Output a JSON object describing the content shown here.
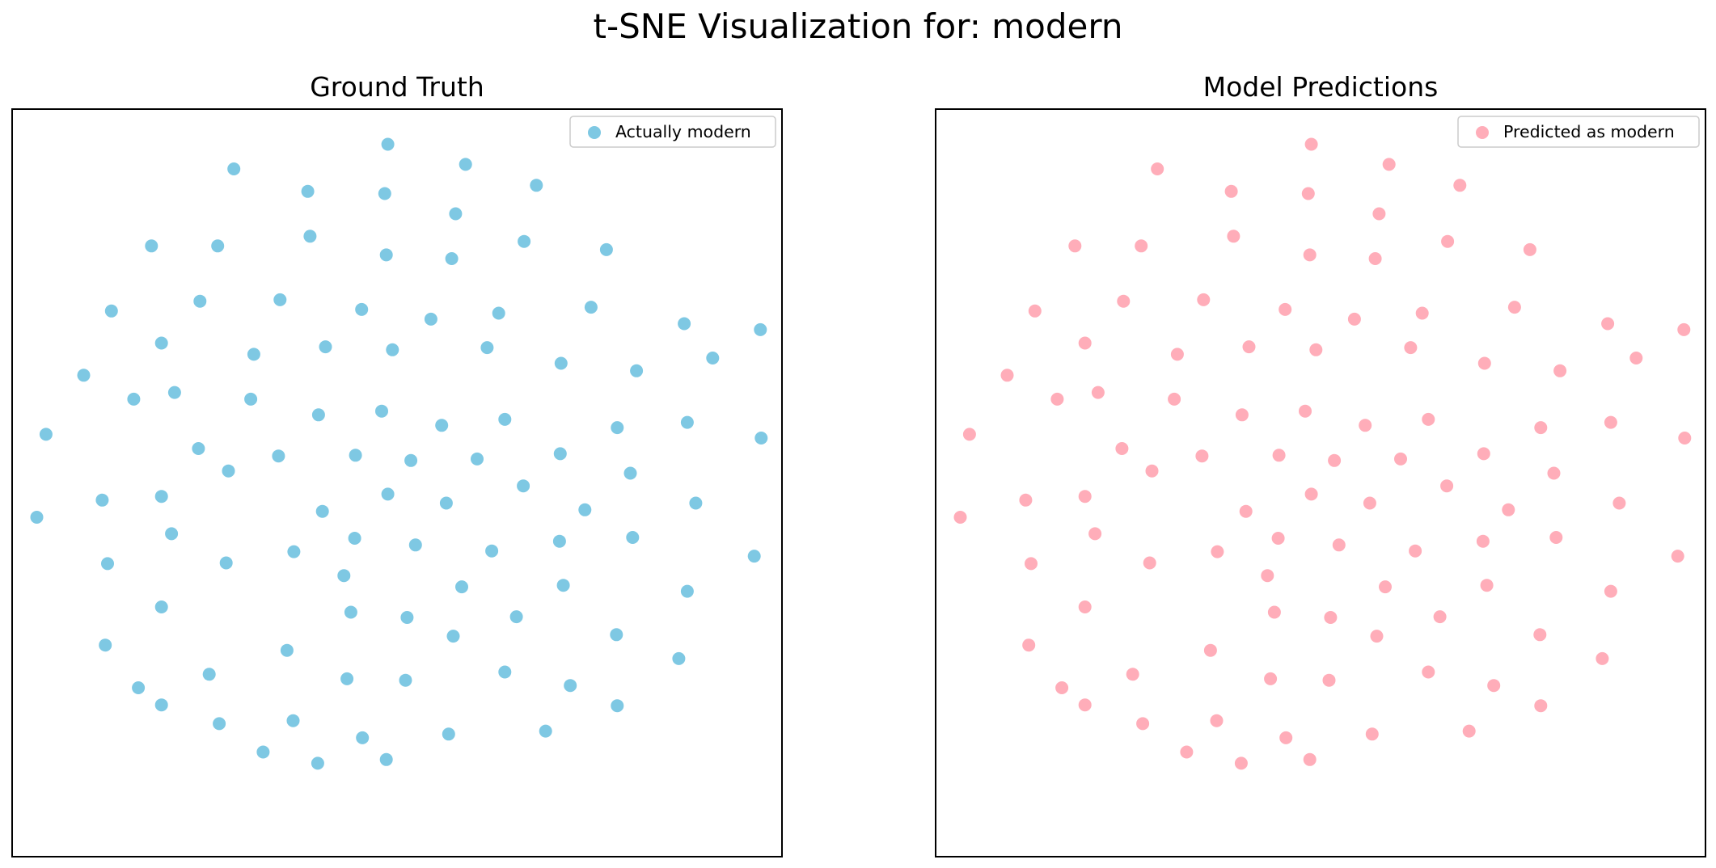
{
  "figure": {
    "title": "t-SNE Visualization for:  modern"
  },
  "chart_data": [
    {
      "type": "scatter",
      "title": "Ground Truth",
      "xlabel": "",
      "ylabel": "",
      "xticks": false,
      "yticks": false,
      "grid": false,
      "legend_position": "upper right",
      "series": [
        {
          "name": "Actually  modern",
          "color": "#7ec8e3",
          "x": [
            0.488,
            0.589,
            0.288,
            0.384,
            0.484,
            0.681,
            0.576,
            0.181,
            0.267,
            0.387,
            0.772,
            0.665,
            0.486,
            0.571,
            0.129,
            0.244,
            0.348,
            0.454,
            0.544,
            0.632,
            0.752,
            0.873,
            0.972,
            0.194,
            0.314,
            0.093,
            0.407,
            0.494,
            0.617,
            0.713,
            0.811,
            0.91,
            0.211,
            0.31,
            0.044,
            0.158,
            0.398,
            0.48,
            0.558,
            0.64,
            0.786,
            0.877,
            0.973,
            0.242,
            0.346,
            0.446,
            0.518,
            0.604,
            0.712,
            0.803,
            0.117,
            0.194,
            0.032,
            0.281,
            0.403,
            0.488,
            0.564,
            0.664,
            0.744,
            0.888,
            0.207,
            0.366,
            0.445,
            0.524,
            0.623,
            0.711,
            0.806,
            0.964,
            0.124,
            0.278,
            0.431,
            0.584,
            0.716,
            0.877,
            0.194,
            0.44,
            0.513,
            0.655,
            0.785,
            0.121,
            0.357,
            0.573,
            0.866,
            0.164,
            0.256,
            0.435,
            0.511,
            0.64,
            0.725,
            0.194,
            0.365,
            0.786,
            0.269,
            0.455,
            0.567,
            0.693,
            0.326,
            0.397,
            0.486
          ],
          "y": [
            0.953,
            0.926,
            0.92,
            0.89,
            0.887,
            0.898,
            0.86,
            0.817,
            0.817,
            0.83,
            0.812,
            0.823,
            0.805,
            0.8,
            0.73,
            0.743,
            0.745,
            0.732,
            0.719,
            0.727,
            0.735,
            0.713,
            0.705,
            0.687,
            0.672,
            0.644,
            0.682,
            0.678,
            0.681,
            0.66,
            0.65,
            0.667,
            0.621,
            0.612,
            0.565,
            0.612,
            0.591,
            0.596,
            0.577,
            0.585,
            0.574,
            0.581,
            0.56,
            0.546,
            0.536,
            0.537,
            0.53,
            0.532,
            0.539,
            0.513,
            0.477,
            0.482,
            0.454,
            0.516,
            0.462,
            0.485,
            0.473,
            0.496,
            0.464,
            0.473,
            0.432,
            0.408,
            0.426,
            0.417,
            0.409,
            0.422,
            0.427,
            0.402,
            0.392,
            0.393,
            0.376,
            0.361,
            0.363,
            0.355,
            0.334,
            0.327,
            0.32,
            0.321,
            0.297,
            0.283,
            0.276,
            0.295,
            0.265,
            0.226,
            0.244,
            0.238,
            0.236,
            0.247,
            0.229,
            0.203,
            0.182,
            0.202,
            0.178,
            0.159,
            0.164,
            0.168,
            0.14,
            0.125,
            0.13
          ]
        }
      ]
    },
    {
      "type": "scatter",
      "title": "Model Predictions",
      "xlabel": "",
      "ylabel": "",
      "xticks": false,
      "yticks": false,
      "grid": false,
      "legend_position": "upper right",
      "series": [
        {
          "name": "Predicted as  modern",
          "color": "#ffadb9",
          "x": [
            0.488,
            0.589,
            0.288,
            0.384,
            0.484,
            0.681,
            0.576,
            0.181,
            0.267,
            0.387,
            0.772,
            0.665,
            0.486,
            0.571,
            0.129,
            0.244,
            0.348,
            0.454,
            0.544,
            0.632,
            0.752,
            0.873,
            0.972,
            0.194,
            0.314,
            0.093,
            0.407,
            0.494,
            0.617,
            0.713,
            0.811,
            0.91,
            0.211,
            0.31,
            0.044,
            0.158,
            0.398,
            0.48,
            0.558,
            0.64,
            0.786,
            0.877,
            0.973,
            0.242,
            0.346,
            0.446,
            0.518,
            0.604,
            0.712,
            0.803,
            0.117,
            0.194,
            0.032,
            0.281,
            0.403,
            0.488,
            0.564,
            0.664,
            0.744,
            0.888,
            0.207,
            0.366,
            0.445,
            0.524,
            0.623,
            0.711,
            0.806,
            0.964,
            0.124,
            0.278,
            0.431,
            0.584,
            0.716,
            0.877,
            0.194,
            0.44,
            0.513,
            0.655,
            0.785,
            0.121,
            0.357,
            0.573,
            0.866,
            0.164,
            0.256,
            0.435,
            0.511,
            0.64,
            0.725,
            0.194,
            0.365,
            0.786,
            0.269,
            0.455,
            0.567,
            0.693,
            0.326,
            0.397,
            0.486
          ],
          "y": [
            0.953,
            0.926,
            0.92,
            0.89,
            0.887,
            0.898,
            0.86,
            0.817,
            0.817,
            0.83,
            0.812,
            0.823,
            0.805,
            0.8,
            0.73,
            0.743,
            0.745,
            0.732,
            0.719,
            0.727,
            0.735,
            0.713,
            0.705,
            0.687,
            0.672,
            0.644,
            0.682,
            0.678,
            0.681,
            0.66,
            0.65,
            0.667,
            0.621,
            0.612,
            0.565,
            0.612,
            0.591,
            0.596,
            0.577,
            0.585,
            0.574,
            0.581,
            0.56,
            0.546,
            0.536,
            0.537,
            0.53,
            0.532,
            0.539,
            0.513,
            0.477,
            0.482,
            0.454,
            0.516,
            0.462,
            0.485,
            0.473,
            0.496,
            0.464,
            0.473,
            0.432,
            0.408,
            0.426,
            0.417,
            0.409,
            0.422,
            0.427,
            0.402,
            0.392,
            0.393,
            0.376,
            0.361,
            0.363,
            0.355,
            0.334,
            0.327,
            0.32,
            0.321,
            0.297,
            0.283,
            0.276,
            0.295,
            0.265,
            0.226,
            0.244,
            0.238,
            0.236,
            0.247,
            0.229,
            0.203,
            0.182,
            0.202,
            0.178,
            0.159,
            0.164,
            0.168,
            0.14,
            0.125,
            0.13
          ]
        }
      ]
    }
  ]
}
